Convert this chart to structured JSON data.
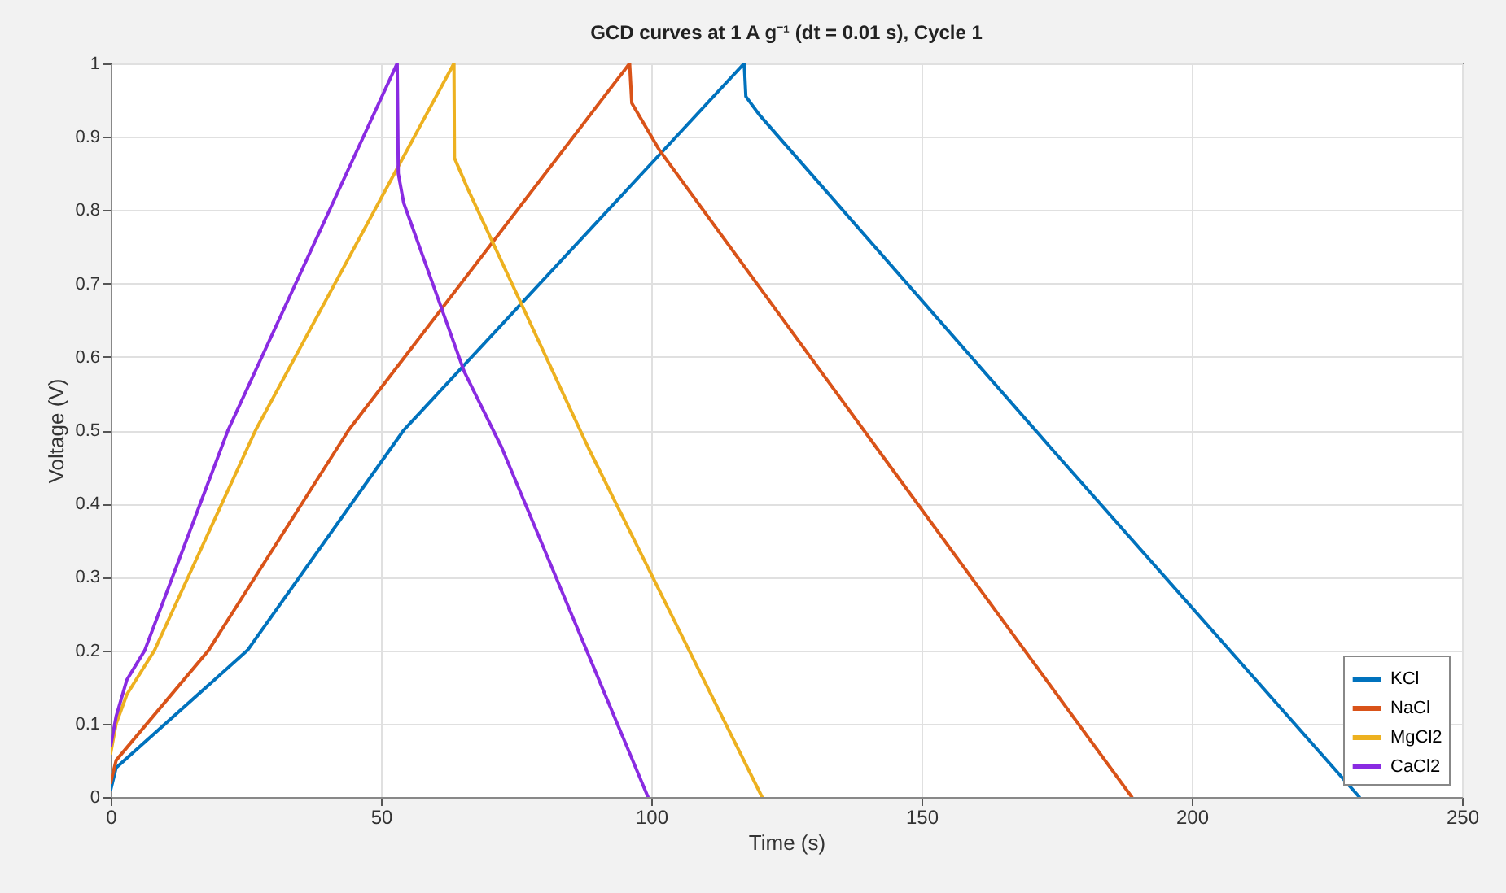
{
  "chart_data": {
    "type": "line",
    "title": "GCD curves at 1 A g⁻¹ (dt = 0.01 s), Cycle 1",
    "xlabel": "Time (s)",
    "ylabel": "Voltage (V)",
    "xlim": [
      0,
      250
    ],
    "xticks": [
      0,
      50,
      100,
      150,
      200,
      250
    ],
    "ylim": [
      0,
      1
    ],
    "yticks": [
      0,
      0.1,
      0.2,
      0.3,
      0.4,
      0.5,
      0.6,
      0.7,
      0.8,
      0.9,
      1
    ],
    "grid": true,
    "legend": "bottom right",
    "line_style": "solid",
    "marker": "none",
    "series": [
      {
        "name": "KCl",
        "color": "#0072bd",
        "x": [
          0,
          1,
          25.3,
          54.2,
          117.2,
          117.5,
          120,
          173.8,
          231
        ],
        "values": [
          0.01,
          0.04,
          0.2,
          0.5,
          1,
          0.955,
          0.93,
          0.477,
          0
        ]
      },
      {
        "name": "NaCl",
        "color": "#d95319",
        "x": [
          0,
          1,
          18.1,
          44,
          96,
          96.4,
          101.5,
          141.6,
          188.9
        ],
        "values": [
          0.02,
          0.05,
          0.2,
          0.5,
          1,
          0.946,
          0.882,
          0.477,
          0
        ]
      },
      {
        "name": "MgCl2",
        "color": "#edb120",
        "x": [
          0,
          1,
          3,
          8.1,
          26.8,
          63.5,
          63.6,
          66,
          88.3,
          120.5
        ],
        "values": [
          0.06,
          0.1,
          0.14,
          0.2,
          0.5,
          1,
          0.871,
          0.83,
          0.477,
          0
        ]
      },
      {
        "name": "CaCl2",
        "color": "#8a2be2",
        "x": [
          0,
          1,
          3,
          6.3,
          21.7,
          53,
          53.2,
          54.2,
          65.4,
          72.3,
          99.4
        ],
        "values": [
          0.07,
          0.11,
          0.16,
          0.2,
          0.5,
          1,
          0.85,
          0.81,
          0.58,
          0.477,
          0
        ]
      }
    ]
  }
}
